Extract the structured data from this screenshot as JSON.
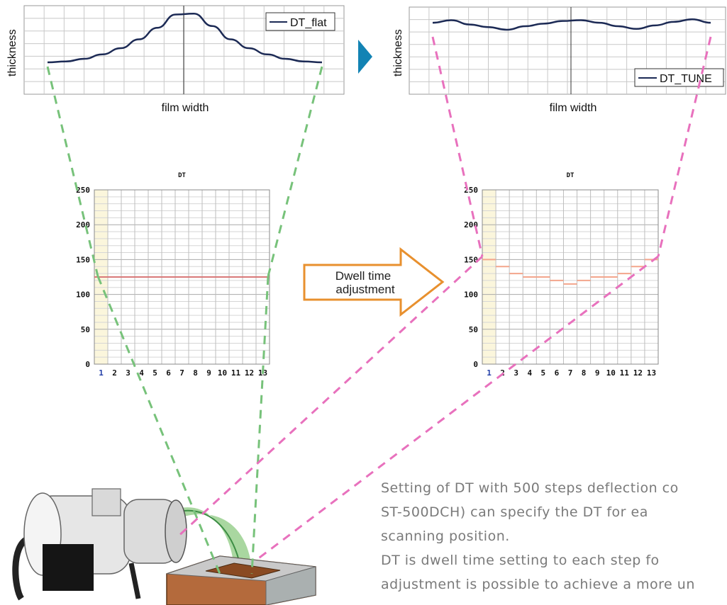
{
  "colors": {
    "curve": "#1c2a55",
    "grid": "#c8c8c8",
    "arrow_orange": "#e8902e",
    "triangle_blue": "#1283b4",
    "green_dash": "#77c27a",
    "pink_dash": "#e871bd",
    "dt_flat_line": "#d87878",
    "dt_tune_line": "#f3a58c",
    "highlight_col": "#fbf6dc",
    "text_gray": "#7a7a7a"
  },
  "top_left_chart": {
    "ylabel": "thickness",
    "xlabel": "film width",
    "legend": "DT_flat"
  },
  "top_right_chart": {
    "ylabel": "thickness",
    "xlabel": "film width",
    "legend": "DT_TUNE"
  },
  "arrow_label": {
    "line1": "Dwell time",
    "line2": "adjustment"
  },
  "chart_data": [
    {
      "type": "line",
      "name": "DT_flat profile",
      "ylabel": "thickness",
      "xlabel": "film width",
      "legend": "DT_flat",
      "y_values": [
        0.36,
        0.37,
        0.4,
        0.45,
        0.52,
        0.62,
        0.75,
        0.9,
        0.91,
        0.77,
        0.62,
        0.52,
        0.45,
        0.4,
        0.37,
        0.36
      ],
      "ylim": [
        0,
        1
      ]
    },
    {
      "type": "line",
      "name": "DT_TUNE profile",
      "ylabel": "thickness",
      "xlabel": "film width",
      "legend": "DT_TUNE",
      "y_values": [
        0.82,
        0.85,
        0.8,
        0.77,
        0.74,
        0.78,
        0.81,
        0.84,
        0.85,
        0.82,
        0.78,
        0.75,
        0.79,
        0.83,
        0.86,
        0.82
      ],
      "ylim": [
        0,
        1
      ]
    },
    {
      "type": "bar",
      "title": "DT",
      "categories": [
        "1",
        "2",
        "3",
        "4",
        "5",
        "6",
        "7",
        "8",
        "9",
        "10",
        "11",
        "12",
        "13"
      ],
      "values": [
        125,
        125,
        125,
        125,
        125,
        125,
        125,
        125,
        125,
        125,
        125,
        125,
        125
      ],
      "yticks": [
        "0",
        "50",
        "100",
        "150",
        "200",
        "250"
      ],
      "ylim": [
        0,
        250
      ],
      "render": "step-line"
    },
    {
      "type": "bar",
      "title": "DT",
      "categories": [
        "1",
        "2",
        "3",
        "4",
        "5",
        "6",
        "7",
        "8",
        "9",
        "10",
        "11",
        "12",
        "13"
      ],
      "values": [
        150,
        140,
        130,
        125,
        125,
        120,
        115,
        120,
        125,
        125,
        130,
        140,
        150
      ],
      "yticks": [
        "0",
        "50",
        "100",
        "150",
        "200",
        "250"
      ],
      "ylim": [
        0,
        250
      ],
      "render": "step-line"
    }
  ],
  "description_text": [
    "Setting of DT with 500 steps deflection co",
    "ST-500DCH) can specify the DT for ea",
    "scanning position.",
    "DT is dwell time setting to each step fo",
    "adjustment is possible to achieve a more un"
  ]
}
